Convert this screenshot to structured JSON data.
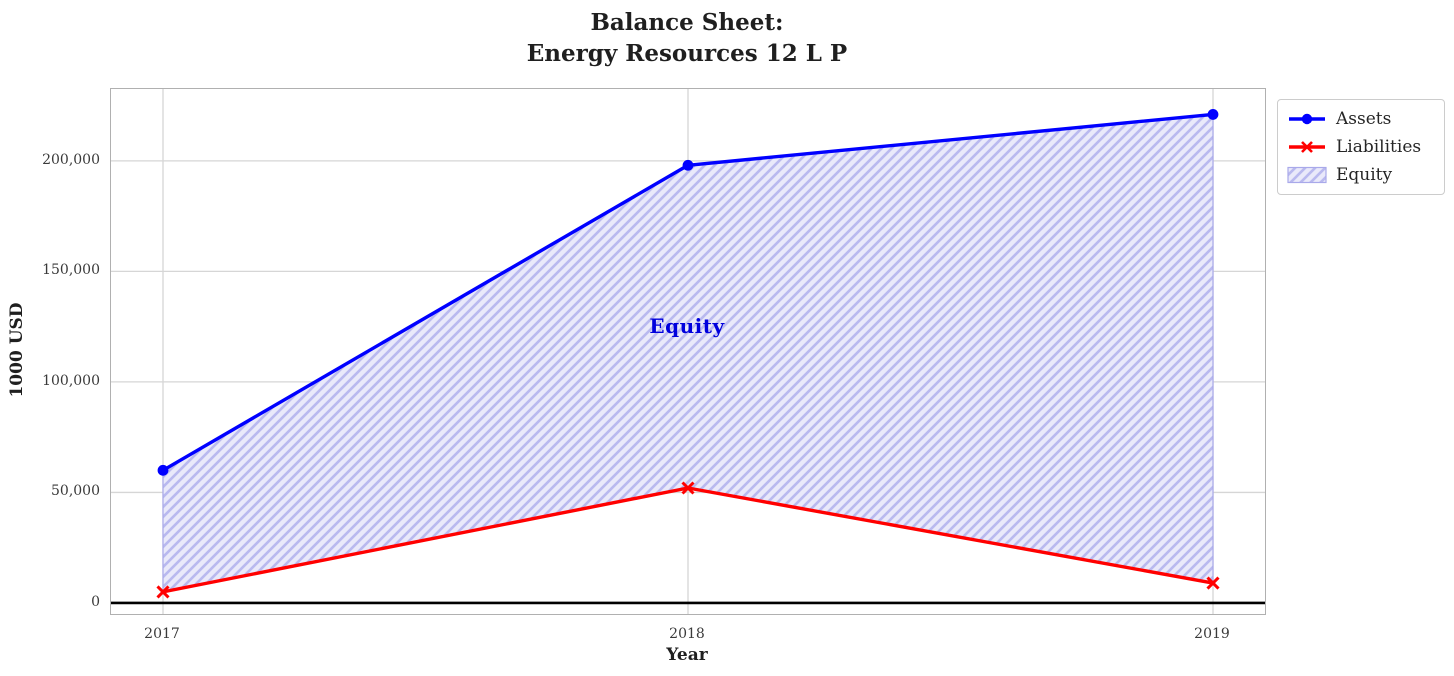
{
  "chart_data": {
    "type": "line",
    "title": "Balance Sheet:\nEnergy Resources 12 L P",
    "title_lines": [
      "Balance Sheet:",
      "Energy Resources 12 L P"
    ],
    "xlabel": "Year",
    "ylabel": "1000 USD",
    "x_categories": [
      "2017",
      "2018",
      "2019"
    ],
    "series": [
      {
        "name": "Assets",
        "values": [
          60000,
          198000,
          221000
        ],
        "color": "#0000ff",
        "marker": "circle"
      },
      {
        "name": "Liabilities",
        "values": [
          5000,
          52000,
          9000
        ],
        "color": "#ff0000",
        "marker": "x"
      }
    ],
    "area": {
      "name": "Equity",
      "between": [
        "Assets",
        "Liabilities"
      ],
      "label": "Equity",
      "label_color": "#0000dd",
      "fill_color": "#e9e9fa",
      "hatch_color": "#b9b9ef",
      "edge_color": "#a9a9ea",
      "hatch": "/"
    },
    "yticks": [
      0,
      50000,
      100000,
      150000,
      200000
    ],
    "ytick_labels": [
      "0",
      "50,000",
      "100,000",
      "150,000",
      "200,000"
    ],
    "ylim": [
      -5000,
      232500
    ],
    "grid": true,
    "grid_color": "#d6d6d6",
    "zero_line_color": "#000000",
    "legend": {
      "position": "upper-right-outside",
      "entries": [
        "Assets",
        "Liabilities",
        "Equity"
      ]
    }
  }
}
